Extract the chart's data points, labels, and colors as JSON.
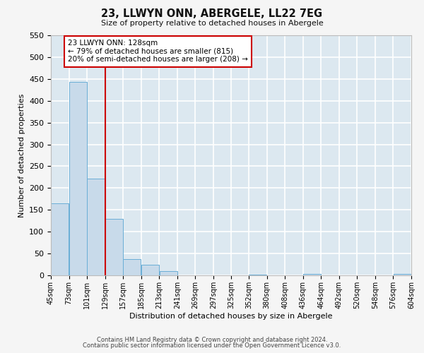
{
  "title": "23, LLWYN ONN, ABERGELE, LL22 7EG",
  "subtitle": "Size of property relative to detached houses in Abergele",
  "xlabel": "Distribution of detached houses by size in Abergele",
  "ylabel": "Number of detached properties",
  "bar_color": "#c8daea",
  "bar_edge_color": "#6aaed6",
  "background_color": "#dce8f0",
  "fig_background_color": "#f5f5f5",
  "grid_color": "#ffffff",
  "bins_left": [
    45,
    73,
    101,
    129,
    157,
    185,
    213,
    241,
    269,
    297,
    325,
    352,
    380,
    408,
    436,
    464,
    492,
    520,
    548,
    576
  ],
  "bin_labels": [
    "45sqm",
    "73sqm",
    "101sqm",
    "129sqm",
    "157sqm",
    "185sqm",
    "213sqm",
    "241sqm",
    "269sqm",
    "297sqm",
    "325sqm",
    "352sqm",
    "380sqm",
    "408sqm",
    "436sqm",
    "464sqm",
    "492sqm",
    "520sqm",
    "548sqm",
    "576sqm",
    "604sqm"
  ],
  "values": [
    165,
    443,
    222,
    130,
    37,
    25,
    10,
    0,
    0,
    0,
    0,
    1,
    0,
    0,
    4,
    0,
    0,
    0,
    0,
    3
  ],
  "bin_width": 28,
  "vline_x_bin_index": 3,
  "vline_color": "#cc0000",
  "annotation_text": "23 LLWYN ONN: 128sqm\n← 79% of detached houses are smaller (815)\n20% of semi-detached houses are larger (208) →",
  "annotation_box_color": "#cc0000",
  "ylim": [
    0,
    550
  ],
  "yticks": [
    0,
    50,
    100,
    150,
    200,
    250,
    300,
    350,
    400,
    450,
    500,
    550
  ],
  "footer_line1": "Contains HM Land Registry data © Crown copyright and database right 2024.",
  "footer_line2": "Contains public sector information licensed under the Open Government Licence v3.0."
}
